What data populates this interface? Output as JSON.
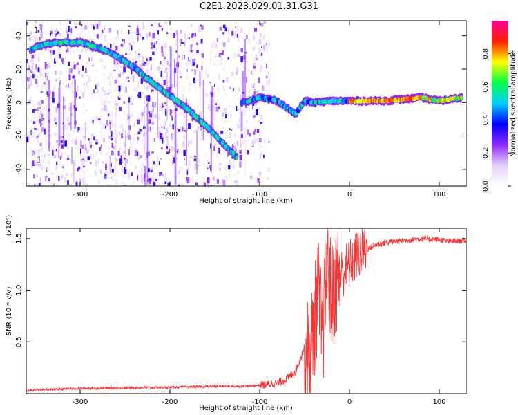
{
  "figure": {
    "title": "C2E1.2023.029.01.31.G31"
  },
  "chart_data": [
    {
      "type": "heatmap",
      "title": "",
      "xlabel": "Height of straight line (km)",
      "ylabel": "Frequency (Hz)",
      "xlim": [
        -360,
        130
      ],
      "ylim": [
        -50,
        49
      ],
      "xticks": [
        -300,
        -200,
        -100,
        0,
        100
      ],
      "yticks": [
        -40,
        -20,
        0,
        20,
        40
      ],
      "colorbar": {
        "label": "Normalized spectral amplitude",
        "range": [
          0,
          1
        ],
        "ticks": [
          "0.0",
          "0.2",
          "0.4",
          "0.6",
          "0.8"
        ],
        "colormap": [
          "#ffffff",
          "#e6d2fa",
          "#8c28ff",
          "#0000ff",
          "#00ccff",
          "#00ff40",
          "#ffff00",
          "#ff2000",
          "#ff0099"
        ]
      },
      "ridges": [
        {
          "name": "",
          "x": [
            -355,
            -340,
            -320,
            -300,
            -280,
            -260,
            -240,
            -220,
            -200,
            -180,
            -160,
            -140,
            -125
          ],
          "y": [
            32,
            35,
            36,
            36,
            33,
            28,
            21,
            12,
            4,
            -4,
            -14,
            -25,
            -33
          ]
        },
        {
          "name": "",
          "x": [
            -120,
            -100,
            -80,
            -60,
            -50,
            -40,
            -20,
            0,
            40,
            80,
            100,
            125
          ],
          "y": [
            0,
            3,
            1,
            -7,
            1,
            0,
            1,
            1,
            1,
            3,
            1,
            3
          ]
        }
      ],
      "grid": false
    },
    {
      "type": "line",
      "title": "",
      "xlabel": "Height of straight line (km)",
      "ylabel": "SNR (10 * v/v)",
      "y_multiplier": "(x10⁴)",
      "xlim": [
        -360,
        130
      ],
      "ylim": [
        0,
        1.6
      ],
      "xticks": [
        -300,
        -200,
        -100,
        0,
        100
      ],
      "yticks": [
        0.5,
        1.0,
        1.5
      ],
      "series": [
        {
          "name": "",
          "color": "#ff3333",
          "x": [
            -360,
            -300,
            -200,
            -150,
            -120,
            -100,
            -80,
            -70,
            -60,
            -50,
            -45,
            -40,
            -35,
            -30,
            -25,
            -20,
            -15,
            -10,
            -5,
            0,
            10,
            20,
            30,
            40,
            60,
            80,
            100,
            110,
            130
          ],
          "y": [
            0.03,
            0.05,
            0.06,
            0.07,
            0.07,
            0.08,
            0.1,
            0.14,
            0.22,
            0.45,
            0.35,
            0.6,
            1.0,
            0.5,
            1.3,
            0.9,
            1.1,
            1.15,
            1.2,
            1.25,
            1.35,
            1.4,
            1.44,
            1.46,
            1.48,
            1.5,
            1.49,
            1.47,
            1.48
          ]
        }
      ],
      "grid": false
    }
  ]
}
